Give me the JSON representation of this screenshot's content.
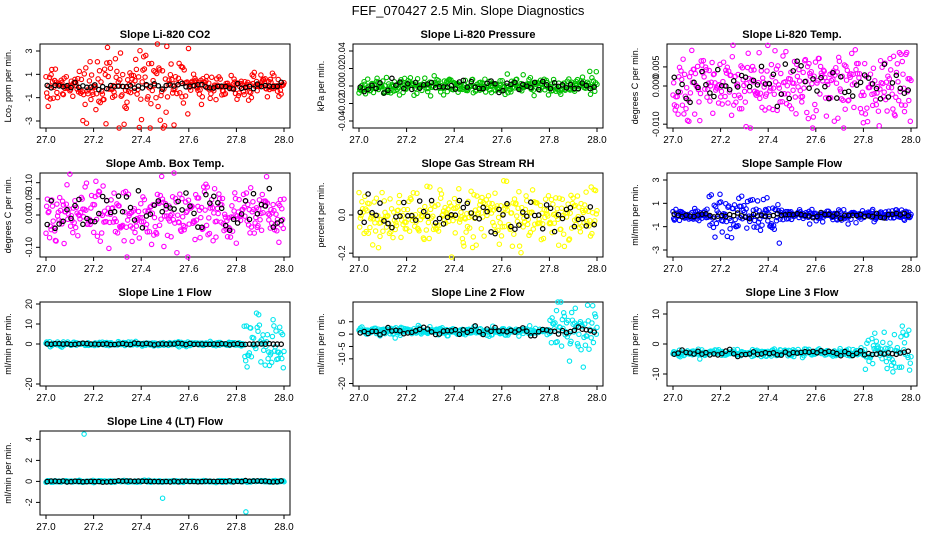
{
  "figure_title": "FEF_070427  2.5 Min. Slope Diagnostics",
  "colors": {
    "co2": "#ff0000",
    "pressure": "#00c000",
    "magenta": "#ff00ff",
    "yellow": "#ffff00",
    "blue": "#0000ff",
    "cyan": "#00e5ee",
    "reference": "#000000"
  },
  "chart_data": [
    {
      "type": "scatter",
      "title": "Slope Li-820 CO2",
      "ylabel": "Lco₂ ppm per min.",
      "color_key": "co2",
      "xlim": [
        27.0,
        28.0
      ],
      "ylim": [
        -3.6,
        3.6
      ],
      "xticks": [
        "27.0",
        "27.2",
        "27.4",
        "27.6",
        "27.8",
        "28.0"
      ],
      "yticks": [
        {
          "value": -3,
          "label": "-3"
        },
        {
          "value": -1,
          "label": "-1"
        },
        {
          "value": 1,
          "label": "1"
        },
        {
          "value": 3,
          "label": "3"
        }
      ],
      "n_points": 330,
      "spread": 0.6,
      "burst": [
        0.15,
        0.6
      ],
      "burst_factor": 2.8,
      "ref_spread": 0.15
    },
    {
      "type": "scatter",
      "title": "Slope Li-820 Pressure",
      "ylabel": "kPa per min.",
      "color_key": "pressure",
      "xlim": [
        27.0,
        28.0
      ],
      "ylim": [
        -0.048,
        0.048
      ],
      "xticks": [
        "27.0",
        "27.2",
        "27.4",
        "27.6",
        "27.8",
        "28.0"
      ],
      "yticks": [
        {
          "value": -0.04,
          "label": "-0.04"
        },
        {
          "value": -0.02,
          "label": "-0.02"
        },
        {
          "value": 0,
          "label": "0.00"
        },
        {
          "value": 0.02,
          "label": "0.02"
        },
        {
          "value": 0.04,
          "label": "0.04"
        }
      ],
      "n_points": 330,
      "spread": 0.005,
      "burst": [
        0.0,
        0.0
      ],
      "burst_factor": 1.0,
      "ref_spread": 0.004
    },
    {
      "type": "scatter",
      "title": "Slope Li-820 Temp.",
      "ylabel": "degrees C per min.",
      "color_key": "magenta",
      "xlim": [
        27.0,
        28.0
      ],
      "ylim": [
        -0.011,
        0.011
      ],
      "xticks": [
        "27.0",
        "27.2",
        "27.4",
        "27.6",
        "27.8",
        "28.0"
      ],
      "yticks": [
        {
          "value": -0.01,
          "label": "-0.010"
        },
        {
          "value": 0,
          "label": "0.000"
        },
        {
          "value": 0.005,
          "label": "0.005"
        }
      ],
      "n_points": 330,
      "spread": 0.0045,
      "burst": [
        0.0,
        0.0
      ],
      "burst_factor": 1.0,
      "ref_spread": 0.003
    },
    {
      "type": "scatter",
      "title": "Slope Amb. Box Temp.",
      "ylabel": "degrees C per min.",
      "color_key": "magenta",
      "xlim": [
        27.0,
        28.0
      ],
      "ylim": [
        -0.13,
        0.13
      ],
      "xticks": [
        "27.0",
        "27.2",
        "27.4",
        "27.6",
        "27.8",
        "28.0"
      ],
      "yticks": [
        {
          "value": -0.1,
          "label": "-0.10"
        },
        {
          "value": 0,
          "label": "0.00"
        },
        {
          "value": 0.05,
          "label": "0.05"
        },
        {
          "value": 0.1,
          "label": "0.10"
        }
      ],
      "n_points": 330,
      "spread": 0.045,
      "burst": [
        0.0,
        0.0
      ],
      "burst_factor": 1.0,
      "ref_spread": 0.03
    },
    {
      "type": "scatter",
      "title": "Slope Gas Stream RH",
      "ylabel": "percent per min.",
      "color_key": "yellow",
      "xlim": [
        27.0,
        28.0
      ],
      "ylim": [
        -0.22,
        0.22
      ],
      "xticks": [
        "27.0",
        "27.2",
        "27.4",
        "27.6",
        "27.8",
        "28.0"
      ],
      "yticks": [
        {
          "value": -0.2,
          "label": "-0.2"
        },
        {
          "value": 0,
          "label": "0.0"
        }
      ],
      "n_points": 330,
      "spread": 0.07,
      "burst": [
        0.0,
        0.0
      ],
      "burst_factor": 1.0,
      "ref_spread": 0.05
    },
    {
      "type": "scatter",
      "title": "Slope Sample Flow",
      "ylabel": "ml/min per min.",
      "color_key": "blue",
      "xlim": [
        27.0,
        28.0
      ],
      "ylim": [
        -3.6,
        3.6
      ],
      "xticks": [
        "27.0",
        "27.2",
        "27.4",
        "27.6",
        "27.8",
        "28.0"
      ],
      "yticks": [
        {
          "value": -3,
          "label": "-3"
        },
        {
          "value": -1,
          "label": "-1"
        },
        {
          "value": 1,
          "label": "1"
        },
        {
          "value": 3,
          "label": "3"
        }
      ],
      "n_points": 330,
      "spread": 0.25,
      "burst": [
        0.15,
        0.45
      ],
      "burst_factor": 3.5,
      "ref_spread": 0.12
    },
    {
      "type": "scatter",
      "title": "Slope Line 1 Flow",
      "ylabel": "ml/min per min.",
      "color_key": "cyan",
      "xlim": [
        27.0,
        28.0
      ],
      "ylim": [
        -21,
        21
      ],
      "xticks": [
        "27.0",
        "27.2",
        "27.4",
        "27.6",
        "27.8",
        "28.0"
      ],
      "yticks": [
        {
          "value": -20,
          "label": "-20"
        },
        {
          "value": 0,
          "label": "0"
        },
        {
          "value": 10,
          "label": "10"
        },
        {
          "value": 20,
          "label": "20"
        }
      ],
      "n_points": 330,
      "spread": 0.5,
      "burst": [
        0.83,
        1.0
      ],
      "burst_factor": 14,
      "ref_spread": 0.2
    },
    {
      "type": "scatter",
      "title": "Slope Line 2 Flow",
      "ylabel": "ml/min per min.",
      "color_key": "cyan",
      "xlim": [
        27.0,
        28.0
      ],
      "ylim": [
        -21,
        13
      ],
      "xticks": [
        "27.0",
        "27.2",
        "27.4",
        "27.6",
        "27.8",
        "28.0"
      ],
      "yticks": [
        {
          "value": -20,
          "label": "-20"
        },
        {
          "value": -10,
          "label": "-10"
        },
        {
          "value": -5,
          "label": "-5"
        },
        {
          "value": 0,
          "label": "0"
        },
        {
          "value": 5,
          "label": "5"
        }
      ],
      "n_points": 330,
      "spread": 0.8,
      "burst": [
        0.8,
        1.0
      ],
      "burst_factor": 6,
      "ref_spread": 0.7,
      "offset": 1.2
    },
    {
      "type": "scatter",
      "title": "Slope Line 3 Flow",
      "ylabel": "ml/min per min.",
      "color_key": "cyan",
      "xlim": [
        27.0,
        28.0
      ],
      "ylim": [
        -14,
        14
      ],
      "xticks": [
        "27.0",
        "27.2",
        "27.4",
        "27.6",
        "27.8",
        "28.0"
      ],
      "yticks": [
        {
          "value": -10,
          "label": "-10"
        },
        {
          "value": 0,
          "label": "0"
        },
        {
          "value": 10,
          "label": "10"
        }
      ],
      "n_points": 330,
      "spread": 0.6,
      "burst": [
        0.8,
        1.0
      ],
      "burst_factor": 6,
      "ref_spread": 0.5,
      "offset": -3
    },
    {
      "type": "scatter",
      "title": "Slope Line 4 (LT) Flow",
      "ylabel": "ml/min per min.",
      "color_key": "cyan",
      "xlim": [
        27.0,
        28.0
      ],
      "ylim": [
        -3.2,
        4.8
      ],
      "xticks": [
        "27.0",
        "27.2",
        "27.4",
        "27.6",
        "27.8",
        "28.0"
      ],
      "yticks": [
        {
          "value": -2,
          "label": "-2"
        },
        {
          "value": 0,
          "label": "0"
        },
        {
          "value": 2,
          "label": "2"
        },
        {
          "value": 4,
          "label": "4"
        }
      ],
      "n_points": 330,
      "spread": 0.04,
      "burst": [
        0.0,
        0.0
      ],
      "burst_factor": 1.0,
      "ref_spread": 0.03,
      "outliers": [
        {
          "x": 27.16,
          "y": 4.5
        },
        {
          "x": 27.49,
          "y": -1.6
        },
        {
          "x": 27.84,
          "y": -2.9
        }
      ]
    }
  ]
}
